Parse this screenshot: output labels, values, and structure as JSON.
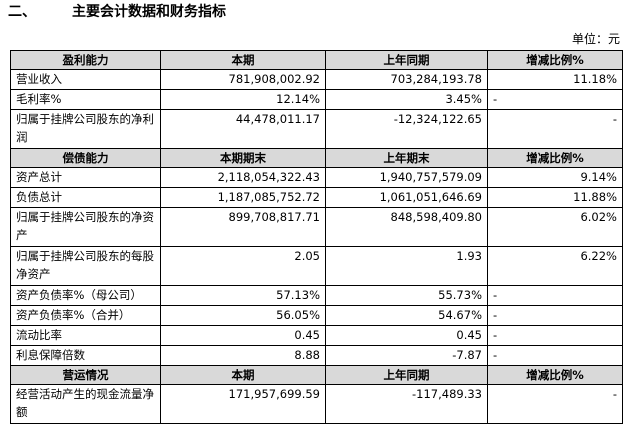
{
  "section": {
    "number": "二、",
    "title": "主要会计数据和财务指标"
  },
  "unit_label": "单位：元",
  "tables": [
    {
      "header": [
        "盈利能力",
        "本期",
        "上年同期",
        "增减比例%"
      ],
      "rows": [
        [
          "营业收入",
          "781,908,002.92",
          "703,284,193.78",
          "11.18%"
        ],
        [
          "毛利率%",
          "12.14%",
          "3.45%",
          "-"
        ],
        [
          "归属于挂牌公司股东的净利润",
          "44,478,011.17",
          "-12,324,122.65",
          "-"
        ]
      ]
    },
    {
      "header": [
        "偿债能力",
        "本期期末",
        "上年期末",
        "增减比例%"
      ],
      "rows": [
        [
          "资产总计",
          "2,118,054,322.43",
          "1,940,757,579.09",
          "9.14%"
        ],
        [
          "负债总计",
          "1,187,085,752.72",
          "1,061,051,646.69",
          "11.88%"
        ],
        [
          "归属于挂牌公司股东的净资产",
          "899,708,817.71",
          "848,598,409.80",
          "6.02%"
        ],
        [
          "归属于挂牌公司股东的每股净资产",
          "2.05",
          "1.93",
          "6.22%"
        ],
        [
          "资产负债率%（母公司）",
          "57.13%",
          "55.73%",
          "-"
        ],
        [
          "资产负债率%（合并）",
          "56.05%",
          "54.67%",
          "-"
        ],
        [
          "流动比率",
          "0.45",
          "0.45",
          "-"
        ],
        [
          "利息保障倍数",
          "8.88",
          "-7.87",
          "-"
        ]
      ]
    },
    {
      "header": [
        "营运情况",
        "本期",
        "上年同期",
        "增减比例%"
      ],
      "rows": [
        [
          "经营活动产生的现金流量净额",
          "171,957,699.59",
          "-117,489.33",
          "-"
        ]
      ]
    }
  ]
}
